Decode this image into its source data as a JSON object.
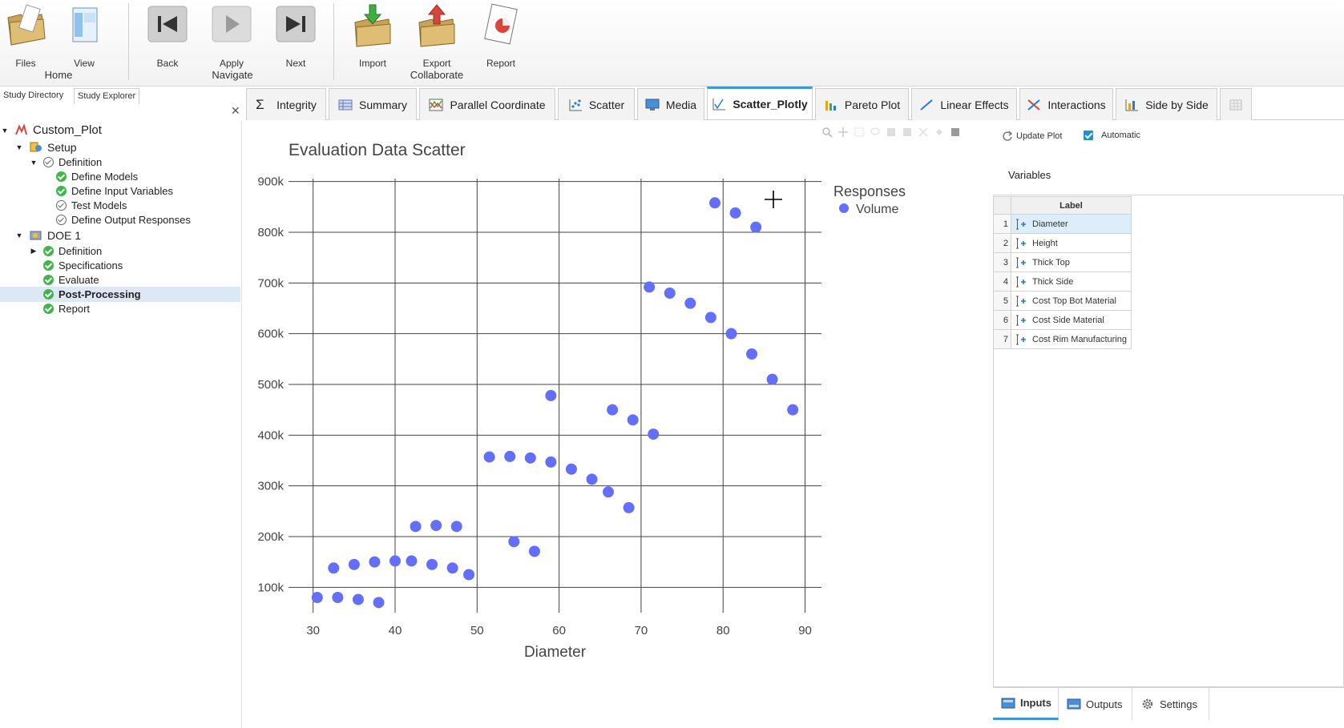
{
  "ribbon": {
    "buttons": [
      {
        "label": "Files",
        "icon": "folder-pencil-icon"
      },
      {
        "label": "View",
        "icon": "window-view-icon"
      },
      {
        "label": "Back",
        "icon": "skip-back-icon"
      },
      {
        "label": "Apply",
        "icon": "play-icon"
      },
      {
        "label": "Next",
        "icon": "skip-next-icon"
      },
      {
        "label": "Import",
        "icon": "folder-import-icon"
      },
      {
        "label": "Export",
        "icon": "folder-export-icon"
      },
      {
        "label": "Report",
        "icon": "report-icon"
      }
    ],
    "groups": {
      "home": "Home",
      "navigate": "Navigate",
      "collaborate": "Collaborate"
    }
  },
  "left_panel": {
    "tabs": [
      "Study Directory",
      "Study Explorer"
    ],
    "tree": [
      {
        "label": "Custom_Plot"
      },
      {
        "label": "Setup"
      },
      {
        "label": "Definition"
      },
      {
        "label": "Define Models"
      },
      {
        "label": "Define Input Variables"
      },
      {
        "label": "Test Models"
      },
      {
        "label": "Define Output Responses"
      },
      {
        "label": "DOE 1"
      },
      {
        "label": "Definition"
      },
      {
        "label": "Specifications"
      },
      {
        "label": "Evaluate"
      },
      {
        "label": "Post-Processing"
      },
      {
        "label": "Report"
      }
    ]
  },
  "tabs": [
    {
      "label": "Integrity",
      "icon": "sigma-icon"
    },
    {
      "label": "Summary",
      "icon": "summary-table-icon"
    },
    {
      "label": "Parallel Coordinate",
      "icon": "parallel-coordinate-icon"
    },
    {
      "label": "Scatter",
      "icon": "scatter-icon"
    },
    {
      "label": "Media",
      "icon": "monitor-icon"
    },
    {
      "label": "Scatter_Plotly",
      "icon": "line-chart-icon"
    },
    {
      "label": "Pareto Plot",
      "icon": "bar-chart-icon"
    },
    {
      "label": "Linear Effects",
      "icon": "linear-effects-icon"
    },
    {
      "label": "Interactions",
      "icon": "interactions-icon"
    },
    {
      "label": "Side by Side",
      "icon": "side-by-side-icon"
    }
  ],
  "chart_data": {
    "type": "scatter",
    "title": "Evaluation Data Scatter",
    "xlabel": "Diameter",
    "ylabel": "",
    "xlim": [
      27,
      92
    ],
    "ylim": [
      50000,
      950000
    ],
    "xticks": [
      30,
      40,
      50,
      60,
      70,
      80,
      90
    ],
    "yticks": [
      100000,
      200000,
      300000,
      400000,
      500000,
      600000,
      700000,
      800000,
      900000
    ],
    "ytick_labels": [
      "100k",
      "200k",
      "300k",
      "400k",
      "500k",
      "600k",
      "700k",
      "800k",
      "900k"
    ],
    "grid": true,
    "legend": {
      "title": "Responses",
      "placement": "top-right"
    },
    "series": [
      {
        "name": "Volume",
        "color": "#636efa",
        "points": [
          [
            30.5,
            80000
          ],
          [
            33,
            80000
          ],
          [
            35.5,
            76000
          ],
          [
            38,
            70000
          ],
          [
            32.5,
            138000
          ],
          [
            35,
            145000
          ],
          [
            37.5,
            150000
          ],
          [
            40,
            152000
          ],
          [
            42,
            152000
          ],
          [
            44.5,
            145000
          ],
          [
            47,
            138000
          ],
          [
            49,
            125000
          ],
          [
            42.5,
            220000
          ],
          [
            45,
            222000
          ],
          [
            47.5,
            220000
          ],
          [
            51.5,
            357000
          ],
          [
            54,
            358000
          ],
          [
            56.5,
            355000
          ],
          [
            59,
            347000
          ],
          [
            61.5,
            333000
          ],
          [
            64,
            313000
          ],
          [
            66,
            288000
          ],
          [
            68.5,
            257000
          ],
          [
            54.5,
            190000
          ],
          [
            57,
            171000
          ],
          [
            59,
            478000
          ],
          [
            66.5,
            450000
          ],
          [
            69,
            430000
          ],
          [
            71.5,
            402000
          ],
          [
            71,
            692000
          ],
          [
            73.5,
            680000
          ],
          [
            76,
            660000
          ],
          [
            78.5,
            632000
          ],
          [
            81,
            600000
          ],
          [
            83.5,
            560000
          ],
          [
            86,
            510000
          ],
          [
            88.5,
            450000
          ],
          [
            79,
            858000
          ],
          [
            81.5,
            838000
          ],
          [
            84,
            810000
          ]
        ]
      }
    ]
  },
  "right_panel": {
    "update_plot_label": "Update Plot",
    "automatic_label": "Automatic",
    "automatic_checked": true,
    "variables_label": "Variables",
    "table_header": "Label",
    "variables": [
      {
        "num": "1",
        "label": "Diameter"
      },
      {
        "num": "2",
        "label": "Height"
      },
      {
        "num": "3",
        "label": "Thick Top"
      },
      {
        "num": "4",
        "label": "Thick Side"
      },
      {
        "num": "5",
        "label": "Cost Top Bot Material"
      },
      {
        "num": "6",
        "label": "Cost Side Material"
      },
      {
        "num": "7",
        "label": "Cost Rim Manufacturing"
      }
    ],
    "bottom_tabs": [
      {
        "label": "Inputs",
        "icon": "inputs-icon"
      },
      {
        "label": "Outputs",
        "icon": "outputs-icon"
      },
      {
        "label": "Settings",
        "icon": "gear-icon"
      }
    ]
  }
}
